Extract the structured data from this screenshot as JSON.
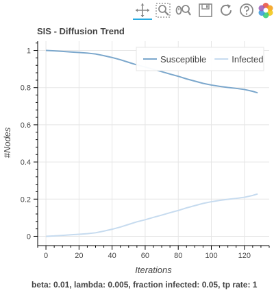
{
  "toolbar": {
    "tools": [
      {
        "name": "pan-tool",
        "icon": "pan-icon"
      },
      {
        "name": "box-zoom-tool",
        "icon": "box-zoom-icon"
      },
      {
        "name": "wheel-zoom-tool",
        "icon": "wheel-zoom-icon"
      },
      {
        "name": "save-tool",
        "icon": "save-icon"
      },
      {
        "name": "reset-tool",
        "icon": "reset-icon"
      },
      {
        "name": "help-tool",
        "icon": "help-icon"
      },
      {
        "name": "bokeh-logo",
        "icon": "bokeh-logo-icon"
      }
    ],
    "active_tool": "pan-tool",
    "accent_color": "#26aae1"
  },
  "chart_data": {
    "type": "line",
    "title": "SIS - Diffusion Trend",
    "xlabel": "Iterations",
    "ylabel": "#Nodes",
    "xlim": [
      -5,
      135
    ],
    "ylim": [
      -0.05,
      1.05
    ],
    "x_ticks": [
      0,
      20,
      40,
      60,
      80,
      100,
      120
    ],
    "y_ticks": [
      0,
      0.2,
      0.4,
      0.6,
      0.8,
      1
    ],
    "grid": true,
    "legend_position": "top-right",
    "x": [
      0,
      5,
      10,
      15,
      20,
      25,
      30,
      35,
      40,
      45,
      50,
      55,
      60,
      65,
      70,
      75,
      80,
      85,
      90,
      95,
      100,
      105,
      110,
      115,
      120,
      125,
      128
    ],
    "series": [
      {
        "name": "Susceptible",
        "color": "#7ba7cc",
        "values": [
          1.0,
          0.998,
          0.995,
          0.992,
          0.989,
          0.986,
          0.981,
          0.972,
          0.962,
          0.95,
          0.936,
          0.922,
          0.911,
          0.898,
          0.886,
          0.873,
          0.861,
          0.847,
          0.835,
          0.823,
          0.814,
          0.807,
          0.801,
          0.796,
          0.79,
          0.78,
          0.772
        ]
      },
      {
        "name": "Infected",
        "color": "#c6dbef",
        "values": [
          0.0,
          0.002,
          0.005,
          0.008,
          0.011,
          0.014,
          0.019,
          0.028,
          0.038,
          0.05,
          0.064,
          0.078,
          0.089,
          0.102,
          0.114,
          0.127,
          0.139,
          0.153,
          0.165,
          0.177,
          0.186,
          0.193,
          0.199,
          0.204,
          0.21,
          0.22,
          0.228
        ]
      }
    ]
  },
  "footer": {
    "text": "beta: 0.01, lambda: 0.005, fraction infected: 0.05, tp rate: 1"
  }
}
